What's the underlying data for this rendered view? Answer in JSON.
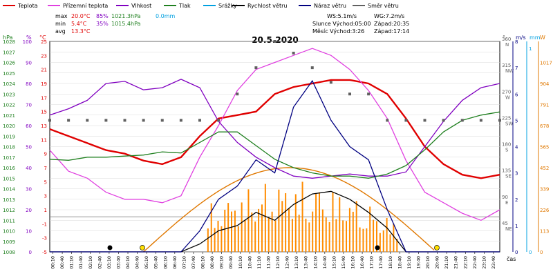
{
  "legend": [
    {
      "label": "Teplota",
      "color": "#e00000"
    },
    {
      "label": "Přízemní teplota",
      "color": "#e040e0"
    },
    {
      "label": "Vlhkost",
      "color": "#8000c0"
    },
    {
      "label": "Tlak",
      "color": "#208020"
    },
    {
      "label": "Srážky",
      "color": "#00a0e0"
    },
    {
      "label": "Rychlost větru",
      "color": "#000000"
    },
    {
      "label": "Náraz větru",
      "color": "#000080"
    },
    {
      "label": "Směr větru",
      "color": "#606060"
    }
  ],
  "stats": {
    "max_label": "max",
    "min_label": "min",
    "avg_label": "avg",
    "max_temp": "20.0°C",
    "max_hum": "85%",
    "max_press": "1021.3hPa",
    "max_rain": "0.0mm",
    "min_temp": "5.4°C",
    "min_hum": "35%",
    "min_press": "1015.4hPa",
    "avg_temp": "13.3°C"
  },
  "wind": {
    "ws": "WS:5.1m/s",
    "wg": "WG:7.2m/s",
    "sun": "Slunce Východ:05:00",
    "sunset": "Západ:20:35",
    "moon": "Měsíc  Východ:3:26",
    "moonset": "Západ:17:14"
  },
  "date": "20.5.2020",
  "axis_units": {
    "hpa": "hPa",
    "pct": "%",
    "deg": "°C",
    "dir": "°",
    "ms": "m/s",
    "mm": "mm",
    "w": "W",
    "time": "čas"
  },
  "chart_data": {
    "type": "line",
    "title": "20.5.2020",
    "x_ticks": [
      "00:10",
      "00:40",
      "01:10",
      "01:40",
      "02:10",
      "02:40",
      "03:10",
      "03:40",
      "04:10",
      "04:40",
      "05:10",
      "05:40",
      "06:10",
      "06:40",
      "07:10",
      "07:40",
      "08:10",
      "08:40",
      "09:10",
      "09:40",
      "10:10",
      "10:40",
      "11:10",
      "11:40",
      "12:10",
      "12:40",
      "13:10",
      "13:40",
      "14:10",
      "14:40",
      "15:10",
      "15:40",
      "16:10",
      "16:40",
      "17:10",
      "17:40",
      "18:10",
      "18:40",
      "19:10",
      "19:40",
      "20:10",
      "20:40",
      "21:10",
      "21:40",
      "22:10",
      "22:40",
      "23:10",
      "23:40"
    ],
    "hpa_ticks": [
      1008,
      1009,
      1010,
      1011,
      1012,
      1013,
      1014,
      1015,
      1016,
      1017,
      1018,
      1019,
      1020,
      1021,
      1022,
      1023,
      1024,
      1025,
      1026,
      1027,
      1028
    ],
    "pct_ticks": [
      0,
      10,
      20,
      30,
      40,
      50,
      60,
      70,
      80,
      90,
      100
    ],
    "temp_ticks": [
      -5,
      -3,
      -1,
      1,
      3,
      5,
      7,
      9,
      11,
      13,
      15,
      17,
      19,
      21,
      23,
      25
    ],
    "dir_ticks": [
      {
        "deg": 45,
        "lab": "NE"
      },
      {
        "deg": 90,
        "lab": "E"
      },
      {
        "deg": 135,
        "lab": "SE"
      },
      {
        "deg": 180,
        "lab": "S"
      },
      {
        "deg": 225,
        "lab": "SW"
      },
      {
        "deg": 270,
        "lab": "W"
      },
      {
        "deg": 315,
        "lab": "NW"
      },
      {
        "deg": 360,
        "lab": "N"
      }
    ],
    "ms_ticks": [
      0,
      1,
      2,
      3,
      4,
      5,
      6,
      7,
      8
    ],
    "mm_ticks": [
      0,
      1
    ],
    "w_ticks": [
      0,
      113,
      226,
      339,
      452,
      565,
      678,
      791,
      904,
      1017
    ],
    "series": [
      {
        "name": "Teplota",
        "axis": "temp",
        "color": "#e00000",
        "x": [
          0,
          1,
          2,
          3,
          4,
          5,
          6,
          7,
          8,
          9,
          10,
          11,
          12,
          13,
          14,
          15,
          16,
          17,
          18,
          19,
          20,
          21,
          22,
          23,
          24
        ],
        "y": [
          12.5,
          11.5,
          10.5,
          9.5,
          9.0,
          8.0,
          7.5,
          8.5,
          11.5,
          14.0,
          14.5,
          15.0,
          17.5,
          18.5,
          19.0,
          19.5,
          19.5,
          19.0,
          17.5,
          14.0,
          10.0,
          7.5,
          6.0,
          5.5,
          6.0
        ]
      },
      {
        "name": "Přízemní teplota",
        "axis": "temp",
        "color": "#e040e0",
        "x": [
          0,
          1,
          2,
          3,
          4,
          5,
          6,
          7,
          8,
          9,
          10,
          11,
          12,
          13,
          14,
          15,
          16,
          17,
          18,
          19,
          20,
          21,
          22,
          23,
          24
        ],
        "y": [
          9.5,
          6.5,
          5.5,
          3.5,
          2.5,
          2.5,
          2.0,
          3.0,
          8.5,
          13.0,
          18.0,
          21.0,
          22.0,
          23.0,
          24.0,
          23.0,
          21.0,
          18.0,
          14.0,
          8.0,
          3.5,
          2.0,
          0.5,
          -0.5,
          1.0
        ]
      },
      {
        "name": "Vlhkost",
        "axis": "pct",
        "color": "#8000c0",
        "x": [
          0,
          1,
          2,
          3,
          4,
          5,
          6,
          7,
          8,
          9,
          10,
          11,
          12,
          13,
          14,
          15,
          16,
          17,
          18,
          19,
          20,
          21,
          22,
          23,
          24
        ],
        "y": [
          65,
          68,
          72,
          80,
          81,
          77,
          78,
          82,
          78,
          62,
          52,
          45,
          40,
          36,
          35,
          36,
          37,
          36,
          36,
          38,
          50,
          62,
          72,
          78,
          80
        ]
      },
      {
        "name": "Tlak",
        "axis": "hpa",
        "color": "#208020",
        "x": [
          0,
          1,
          2,
          3,
          4,
          5,
          6,
          7,
          8,
          9,
          10,
          11,
          12,
          13,
          14,
          15,
          16,
          17,
          18,
          19,
          20,
          21,
          22,
          23,
          24
        ],
        "y": [
          1016.8,
          1016.7,
          1017.0,
          1017.0,
          1017.1,
          1017.2,
          1017.5,
          1017.4,
          1018.4,
          1019.4,
          1019.4,
          1018.1,
          1016.8,
          1016.0,
          1015.5,
          1015.2,
          1015.2,
          1015.0,
          1015.4,
          1016.2,
          1017.7,
          1019.4,
          1020.5,
          1021.0,
          1021.3
        ]
      },
      {
        "name": "Směr větru",
        "axis": "dir",
        "color": "#606060",
        "x": [
          0,
          1,
          2,
          3,
          4,
          5,
          6,
          7,
          8,
          9,
          10,
          11,
          12,
          13,
          14,
          15,
          16,
          17,
          18,
          19,
          20,
          21,
          22,
          23,
          24
        ],
        "y": [
          225,
          225,
          225,
          225,
          225,
          225,
          225,
          225,
          225,
          225,
          270,
          315,
          360,
          340,
          315,
          290,
          270,
          270,
          225,
          225,
          225,
          225,
          225,
          225,
          225
        ]
      },
      {
        "name": "Rychlost větru",
        "axis": "ms",
        "color": "#000000",
        "x": [
          0,
          1,
          2,
          3,
          4,
          5,
          6,
          7,
          8,
          9,
          10,
          11,
          12,
          13,
          14,
          15,
          16,
          17,
          18,
          19,
          20,
          21,
          22,
          23,
          24
        ],
        "y": [
          0,
          0,
          0,
          0,
          0,
          0,
          0,
          0,
          0.3,
          0.8,
          1.0,
          1.5,
          1.2,
          1.8,
          2.2,
          2.3,
          2.0,
          1.5,
          0.9,
          0,
          0,
          0,
          0,
          0,
          0
        ]
      },
      {
        "name": "Náraz větru",
        "axis": "ms",
        "color": "#000080",
        "x": [
          0,
          1,
          2,
          3,
          4,
          5,
          6,
          7,
          8,
          9,
          10,
          11,
          12,
          13,
          14,
          15,
          16,
          17,
          18,
          19,
          20,
          21,
          22,
          23,
          24
        ],
        "y": [
          0,
          0,
          0,
          0,
          0,
          0,
          0,
          0,
          0.8,
          2.0,
          2.5,
          3.5,
          3.0,
          5.5,
          6.5,
          5.0,
          4.0,
          3.5,
          1.6,
          0,
          0,
          0,
          0,
          0,
          0
        ]
      }
    ]
  }
}
